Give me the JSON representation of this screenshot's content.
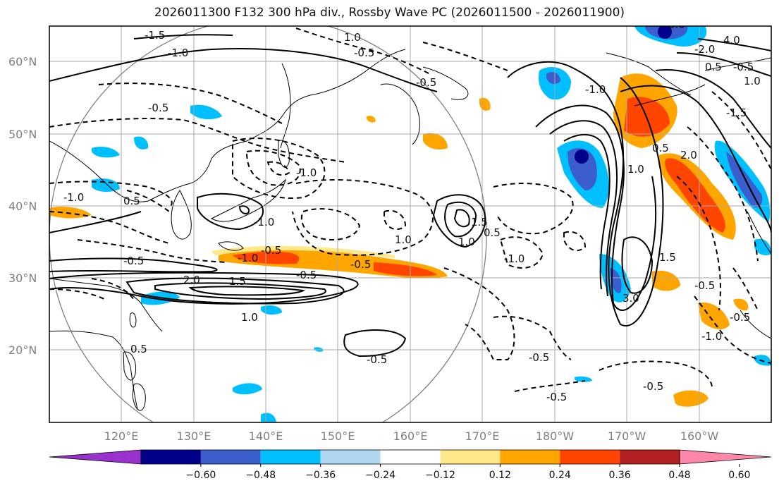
{
  "title": "2026011300 F132 300 hPa div., Rossby Wave PC (2026011500 - 2026011900)",
  "lat_labels": [
    "60°N",
    "50°N",
    "40°N",
    "30°N",
    "20°N"
  ],
  "lon_labels": [
    "120°E",
    "130°E",
    "140°E",
    "150°E",
    "160°E",
    "170°E",
    "180°W",
    "170°W",
    "160°W"
  ],
  "colorbar": {
    "ticks": [
      "−0.60",
      "−0.48",
      "−0.36",
      "−0.24",
      "−0.12",
      "0.12",
      "0.24",
      "0.36",
      "0.48",
      "0.60"
    ],
    "colors": [
      "#9932cc",
      "#00008b",
      "#3a5fcd",
      "#00bfff",
      "#add8f0",
      "#ffffff",
      "#ffe88a",
      "#ffa500",
      "#ff4500",
      "#b22222",
      "#ff88aa"
    ]
  },
  "contour_labels": [
    "-1.5",
    "-1.0",
    "-0.5",
    "1.0",
    "-0.5",
    "-1.0",
    "-1.0",
    "-1.0",
    "-1.0",
    "0.5",
    "-0.5",
    "2.0",
    "1.5",
    "1.0",
    "-0.5",
    "-0.5",
    "1.0",
    "-0.5",
    "1.0",
    "1.5",
    "0.5",
    "-0.5",
    "-1.0",
    "-1.0",
    "-0.5",
    "-0.5",
    "-0.5",
    "1.0",
    "3.0",
    "4.0",
    "-2.0",
    "0.5",
    "1.0",
    "0.5",
    "2.0",
    "-0.5",
    "-1.5",
    "-0.5",
    "1.5",
    "3.0",
    "-0.5",
    "-1.0",
    "0.5",
    "-0.5"
  ]
}
